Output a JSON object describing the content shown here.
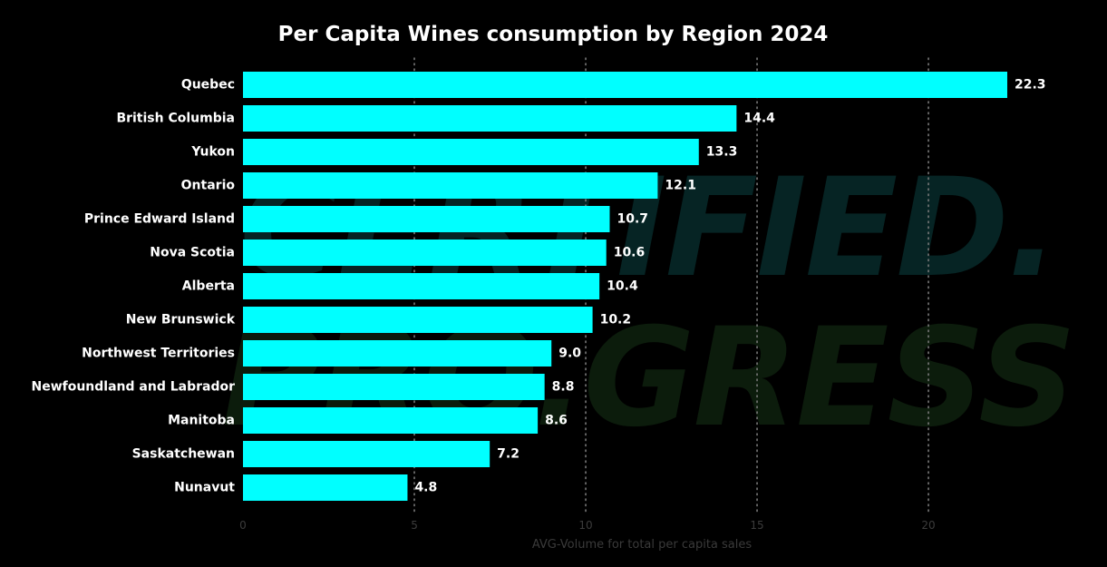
{
  "chart_data": {
    "type": "bar",
    "orientation": "horizontal",
    "title": "Per Capita Wines consumption by Region 2024",
    "xlabel": "AVG-Volume for total per capita sales",
    "ylabel": "",
    "categories": [
      "Quebec",
      "British Columbia",
      "Yukon",
      "Ontario",
      "Prince Edward Island",
      "Nova Scotia",
      "Alberta",
      "New Brunswick",
      "Northwest Territories",
      "Newfoundland and Labrador",
      "Manitoba",
      "Saskatchewan",
      "Nunavut"
    ],
    "values": [
      22.3,
      14.4,
      13.3,
      12.1,
      10.7,
      10.6,
      10.4,
      10.2,
      9.0,
      8.8,
      8.6,
      7.2,
      4.8
    ],
    "value_labels": [
      "22.3",
      "14.4",
      "13.3",
      "12.1",
      "10.7",
      "10.6",
      "10.4",
      "10.2",
      "9.0",
      "8.8",
      "8.6",
      "7.2",
      "4.8"
    ],
    "xlim": [
      0,
      22.3
    ],
    "xticks": [
      0,
      5,
      10,
      15,
      20
    ],
    "xtick_labels": [
      "0",
      "5",
      "10",
      "15",
      "20"
    ],
    "grid": true,
    "legend": "none",
    "bar_color": "#00ffff",
    "background_color": "#000000",
    "watermark": [
      "CERTIFIED.",
      "PRO.GRESS"
    ],
    "watermark_colors": [
      "#062424",
      "#0c1c0c"
    ]
  }
}
